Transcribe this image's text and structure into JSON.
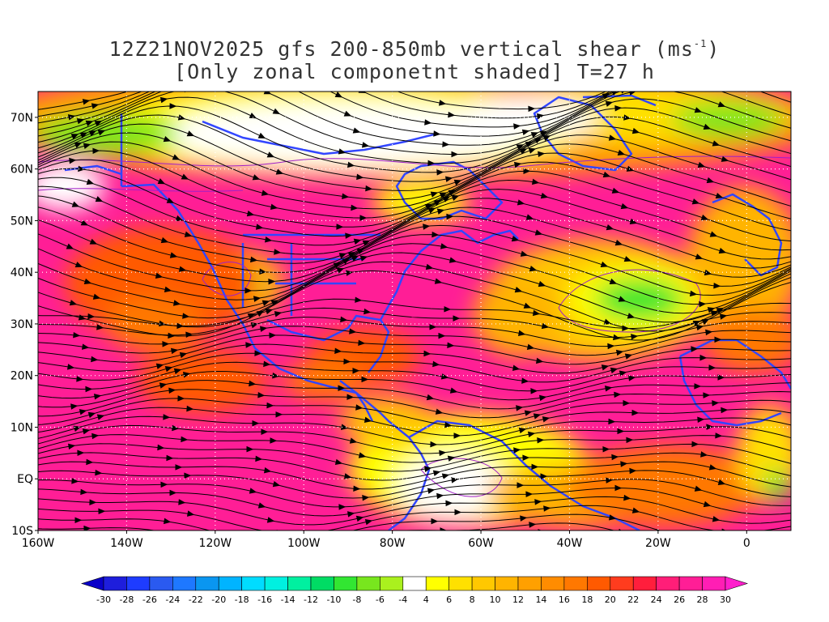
{
  "title": {
    "line1_prefix": "12Z21NOV2025 gfs 200-850mb vertical shear (ms",
    "line1_sup": "-1",
    "line1_suffix": ")",
    "line2": "[Only zonal componetnt shaded] T=27 h"
  },
  "lat_labels": [
    "70N",
    "60N",
    "50N",
    "40N",
    "30N",
    "20N",
    "10N",
    "EQ",
    "10S"
  ],
  "lat_values": [
    70,
    60,
    50,
    40,
    30,
    20,
    10,
    0,
    -10
  ],
  "lon_labels": [
    "160W",
    "140W",
    "120W",
    "100W",
    "80W",
    "60W",
    "40W",
    "20W",
    "0"
  ],
  "lon_values": [
    -160,
    -140,
    -120,
    -100,
    -80,
    -60,
    -40,
    -20,
    0
  ],
  "extent": {
    "lon_min": -160,
    "lon_max": 10,
    "lat_min": -10,
    "lat_max": 75
  },
  "colorbar": {
    "labels": [
      "-30",
      "-28",
      "-26",
      "-24",
      "-22",
      "-20",
      "-18",
      "-16",
      "-14",
      "-12",
      "-10",
      "-8",
      "-6",
      "-4",
      "4",
      "6",
      "8",
      "10",
      "12",
      "14",
      "16",
      "18",
      "20",
      "22",
      "24",
      "26",
      "28",
      "30"
    ],
    "colors": [
      "#1e1edc",
      "#1e3cff",
      "#2a5af0",
      "#1e78ff",
      "#0a96f0",
      "#00b4ff",
      "#00dcff",
      "#00f0e0",
      "#00f0a0",
      "#00dc64",
      "#32e632",
      "#78e61e",
      "#aaf01e",
      "#ffffff",
      "#ffff00",
      "#ffe000",
      "#ffc800",
      "#ffb400",
      "#ffa000",
      "#ff8c00",
      "#ff7800",
      "#ff5a00",
      "#ff3c1e",
      "#ff1e3c",
      "#ff1e78",
      "#ff1e96",
      "#ff1eb4"
    ]
  },
  "colors": {
    "coast": "#3246ff",
    "stream": "#000000",
    "contour": "#a020c8",
    "grid": "#ffffff"
  }
}
